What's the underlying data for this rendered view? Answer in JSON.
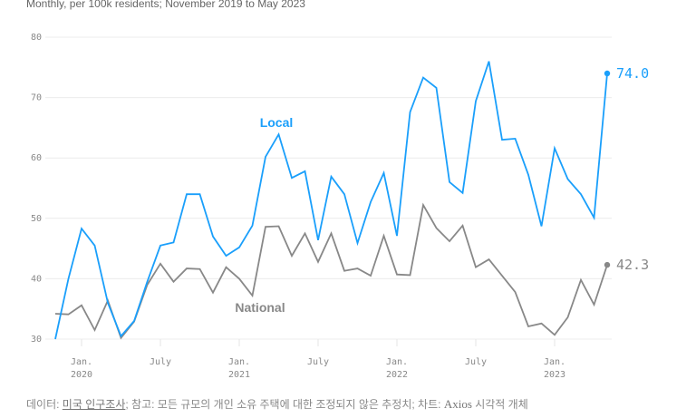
{
  "subtitle": "Monthly, per 100k residents; November 2019 to May 2023",
  "chart_data": {
    "type": "line",
    "title": "",
    "subtitle": "Monthly, per 100k residents; November 2019 to May 2023",
    "x_start": "2019-11",
    "x_end": "2023-05",
    "x": [
      "2019-11",
      "2019-12",
      "2020-01",
      "2020-02",
      "2020-03",
      "2020-04",
      "2020-05",
      "2020-06",
      "2020-07",
      "2020-08",
      "2020-09",
      "2020-10",
      "2020-11",
      "2020-12",
      "2021-01",
      "2021-02",
      "2021-03",
      "2021-04",
      "2021-05",
      "2021-06",
      "2021-07",
      "2021-08",
      "2021-09",
      "2021-10",
      "2021-11",
      "2021-12",
      "2022-01",
      "2022-02",
      "2022-03",
      "2022-04",
      "2022-05",
      "2022-06",
      "2022-07",
      "2022-08",
      "2022-09",
      "2022-10",
      "2022-11",
      "2022-12",
      "2023-01",
      "2023-02",
      "2023-03",
      "2023-04",
      "2023-05"
    ],
    "ylim": [
      30,
      80
    ],
    "yticks": [
      "30",
      "40",
      "50",
      "60",
      "70",
      "80"
    ],
    "xticks": [
      {
        "month": "2020-01",
        "label": "Jan.",
        "year": "2020"
      },
      {
        "month": "2020-07",
        "label": "July",
        "year": ""
      },
      {
        "month": "2021-01",
        "label": "Jan.",
        "year": "2021"
      },
      {
        "month": "2021-07",
        "label": "July",
        "year": ""
      },
      {
        "month": "2022-01",
        "label": "Jan.",
        "year": "2022"
      },
      {
        "month": "2022-07",
        "label": "July",
        "year": ""
      },
      {
        "month": "2023-01",
        "label": "Jan.",
        "year": "2023"
      }
    ],
    "grid": true,
    "series": [
      {
        "name": "Local",
        "color": "#1a9ffb",
        "end_label": "74.0",
        "values": [
          30.0,
          40.0,
          48.3,
          45.5,
          36.0,
          30.5,
          33.0,
          39.5,
          45.5,
          46.0,
          54.0,
          54.0,
          47.0,
          43.8,
          45.2,
          48.8,
          60.2,
          63.9,
          56.7,
          57.8,
          46.4,
          56.9,
          54.0,
          45.9,
          52.7,
          57.5,
          47.1,
          67.6,
          73.3,
          71.6,
          56.0,
          54.2,
          69.4,
          76.0,
          63.0,
          63.2,
          57.2,
          48.7,
          61.6,
          56.5,
          54.0,
          50.1,
          74.0
        ]
      },
      {
        "name": "National",
        "color": "#888888",
        "end_label": "42.3",
        "values": [
          34.2,
          34.1,
          35.6,
          31.5,
          36.4,
          30.2,
          32.9,
          39.0,
          42.5,
          39.5,
          41.7,
          41.6,
          37.7,
          41.9,
          40.0,
          37.2,
          48.6,
          48.7,
          43.8,
          47.5,
          42.8,
          47.5,
          41.3,
          41.7,
          40.5,
          47.1,
          40.7,
          40.6,
          52.2,
          48.4,
          46.2,
          48.8,
          41.9,
          43.2,
          40.5,
          37.8,
          32.1,
          32.6,
          30.7,
          33.6,
          39.8,
          35.7,
          42.3
        ]
      }
    ]
  },
  "footer": {
    "data_prefix": "데이터: ",
    "source_link": "미국 인구조사",
    "note": "; 참고: 모든 규모의 개인 소유 주택에 대한 조정되지 않은 추정치; 차트: ",
    "brand": "Axios",
    "suffix": " 시각적 개체"
  }
}
